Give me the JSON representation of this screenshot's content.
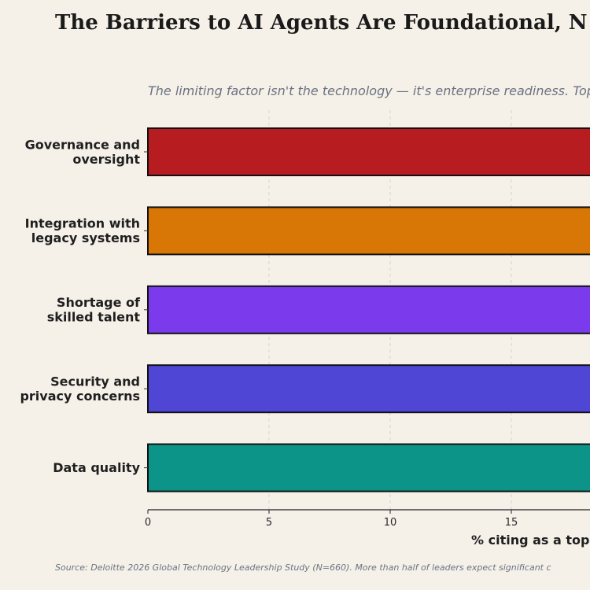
{
  "chart_data": {
    "type": "bar",
    "orientation": "horizontal",
    "title": "The Barriers to AI Agents Are Foundational, N",
    "subtitle": "The limiting factor isn't the technology — it's enterprise readiness. Top",
    "xlabel": "% citing as a top-",
    "ylabel": "",
    "categories": [
      [
        "Governance and",
        "oversight"
      ],
      [
        "Integration with",
        "legacy systems"
      ],
      [
        "Shortage of",
        "skilled talent"
      ],
      [
        "Security and",
        "privacy concerns"
      ],
      [
        "Data quality"
      ]
    ],
    "values": [
      28,
      28,
      27,
      26,
      25
    ],
    "colors": [
      "#b71c20",
      "#d97706",
      "#7c3aed",
      "#4f46d5",
      "#0d9488"
    ],
    "xticks": [
      0,
      5,
      10,
      15
    ],
    "xlim": [
      0,
      30
    ],
    "grid": "x",
    "legend": "none",
    "source": "Source: Deloitte 2026 Global Technology Leadership Study (N=660). More than half of leaders expect significant c"
  }
}
